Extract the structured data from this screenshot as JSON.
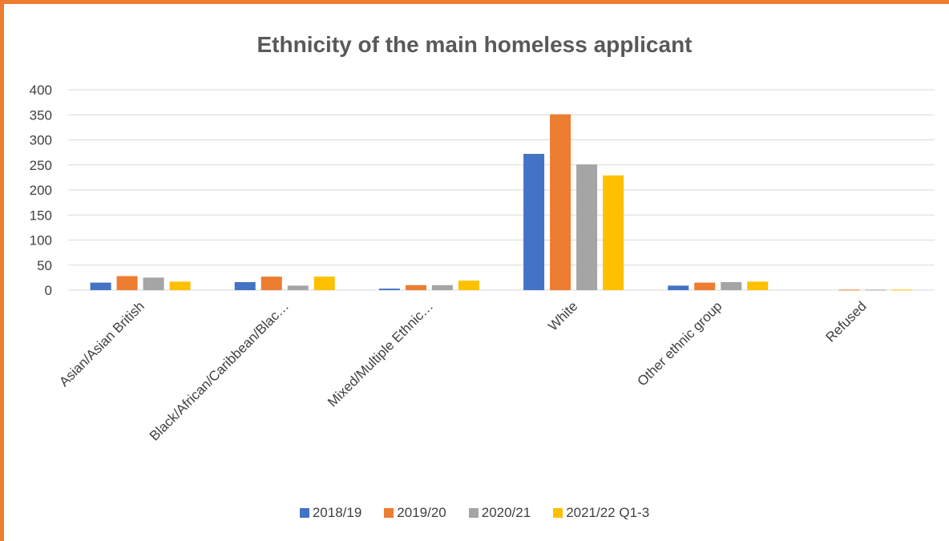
{
  "chart_data": {
    "type": "bar",
    "title": "Ethnicity of the main homeless applicant",
    "xlabel": "",
    "ylabel": "",
    "ylim": [
      0,
      400
    ],
    "yticks": [
      0,
      50,
      100,
      150,
      200,
      250,
      300,
      350,
      400
    ],
    "grid": true,
    "legend_position": "bottom",
    "categories": [
      "Asian/Asian British",
      "Black/African/Caribbean/Blac…",
      "Mixed/Multiple Ethnic…",
      "White",
      "Other ethnic group",
      "Refused"
    ],
    "series": [
      {
        "name": "2018/19",
        "color": "#4472C4",
        "values": [
          15,
          16,
          3,
          272,
          9,
          0
        ]
      },
      {
        "name": "2019/20",
        "color": "#ED7D31",
        "values": [
          28,
          27,
          10,
          351,
          15,
          1
        ]
      },
      {
        "name": "2020/21",
        "color": "#A5A5A5",
        "values": [
          25,
          9,
          10,
          251,
          16,
          1
        ]
      },
      {
        "name": "2021/22 Q1-3",
        "color": "#FFC000",
        "values": [
          17,
          27,
          19,
          229,
          17,
          1
        ]
      }
    ]
  }
}
